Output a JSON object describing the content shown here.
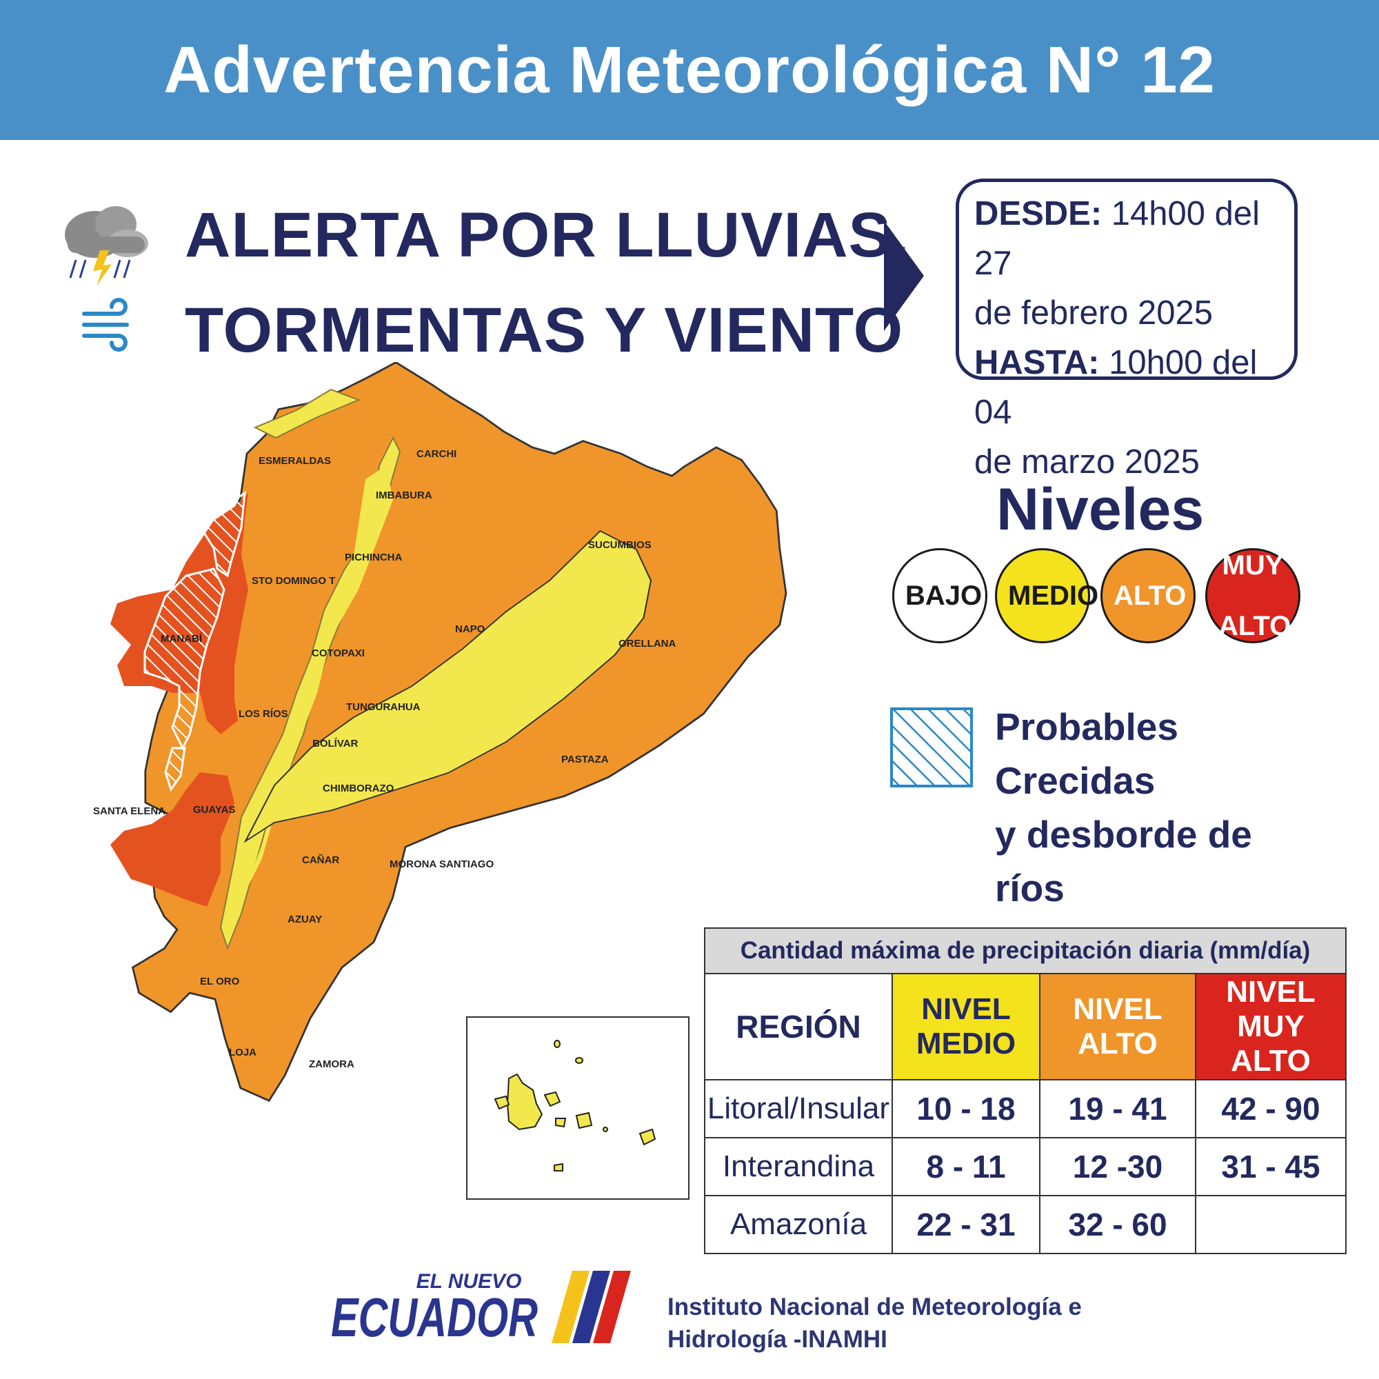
{
  "header": {
    "title": "Advertencia Meteorológica N° 12"
  },
  "alert": {
    "line1": "ALERTA POR LLUVIAS,",
    "line2": "TORMENTAS Y VIENTO",
    "icons": [
      "storm-cloud-icon",
      "wind-icon"
    ]
  },
  "period": {
    "from_label": "DESDE:",
    "from_line1": "14h00 del 27",
    "from_line2": "de febrero 2025",
    "to_label": "HASTA:",
    "to_line1": "10h00 del 04",
    "to_line2": "de marzo 2025"
  },
  "legend": {
    "title": "Niveles",
    "levels": [
      {
        "label": "BAJO",
        "color": "#ffffff",
        "text_color": "#1a1a1a"
      },
      {
        "label": "MEDIO",
        "color": "#f4e21c",
        "text_color": "#1a1a1a"
      },
      {
        "label": "ALTO",
        "color": "#f0952a",
        "text_color": "#ffffff"
      },
      {
        "label_line1": "MUY",
        "label_line2": "ALTO",
        "color": "#d9251d",
        "text_color": "#ffffff"
      }
    ],
    "floods_line1": "Probables Crecidas",
    "floods_line2": "y desborde de ríos"
  },
  "map": {
    "provinces": {
      "esmeraldas": "ESMERALDAS",
      "carchi": "CARCHI",
      "imbabura": "IMBABURA",
      "sucumbios": "SUCUMBIOS",
      "pichincha": "PICHINCHA",
      "sto_domingo": "STO DOMINGO T",
      "manabi": "MANABÍ",
      "napo": "NAPO",
      "orellana": "ORELLANA",
      "cotopaxi": "COTOPAXI",
      "tungurahua": "TUNGURAHUA",
      "los_rios": "LOS RÍOS",
      "bolivar": "BOLÍVAR",
      "pastaza": "PASTAZA",
      "chimborazo": "CHIMBORAZO",
      "santa_elena": "SANTA ELENA",
      "guayas": "GUAYAS",
      "canar": "CAÑAR",
      "morona": "MORONA SANTIAGO",
      "azuay": "AZUAY",
      "el_oro": "EL ORO",
      "loja": "LOJA",
      "zamora": "ZAMORA"
    }
  },
  "table": {
    "caption": "Cantidad máxima de precipitación diaria (mm/día)",
    "region_header": "REGIÓN",
    "medio_l1": "NIVEL",
    "medio_l2": "MEDIO",
    "alto_l1": "NIVEL",
    "alto_l2": "ALTO",
    "muy_l1": "NIVEL",
    "muy_l2": "MUY ALTO",
    "rows": [
      {
        "region": "Litoral/Insular",
        "medio": "10 - 18",
        "alto": "19 - 41",
        "muy_alto": "42 - 90"
      },
      {
        "region": "Interandina",
        "medio": "8 - 11",
        "alto": "12 -30",
        "muy_alto": "31 - 45"
      },
      {
        "region": "Amazonía",
        "medio": "22 - 31",
        "alto": "32 - 60",
        "muy_alto": ""
      }
    ]
  },
  "footer": {
    "logo_line1": "EL NUEVO",
    "logo_line2": "ECUADOR",
    "institute_line1": "Instituto Nacional de Meteorología e",
    "institute_line2": "Hidrología -INAMHI"
  }
}
